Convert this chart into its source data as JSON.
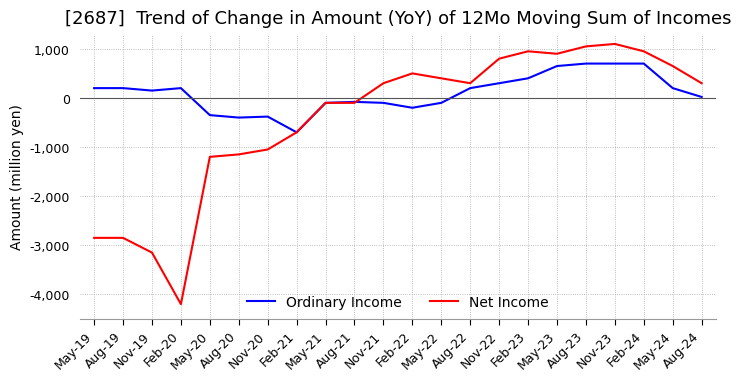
{
  "title": "[2687]  Trend of Change in Amount (YoY) of 12Mo Moving Sum of Incomes",
  "ylabel": "Amount (million yen)",
  "ylim": [
    -4500,
    1300
  ],
  "yticks": [
    1000,
    0,
    -1000,
    -2000,
    -3000,
    -4000
  ],
  "x_labels": [
    "May-19",
    "Aug-19",
    "Nov-19",
    "Feb-20",
    "May-20",
    "Aug-20",
    "Nov-20",
    "Feb-21",
    "May-21",
    "Aug-21",
    "Nov-21",
    "Feb-22",
    "May-22",
    "Aug-22",
    "Nov-22",
    "Feb-23",
    "May-23",
    "Aug-23",
    "Nov-23",
    "Feb-24",
    "May-24",
    "Aug-24"
  ],
  "ordinary_income": [
    200,
    200,
    150,
    200,
    -350,
    -400,
    -380,
    -700,
    -100,
    -80,
    -100,
    -200,
    -100,
    200,
    300,
    400,
    650,
    700,
    700,
    700,
    200,
    20
  ],
  "net_income": [
    -2850,
    -2850,
    -3150,
    -4200,
    -1200,
    -1150,
    -1050,
    -700,
    -100,
    -100,
    300,
    500,
    400,
    300,
    800,
    950,
    900,
    1050,
    1100,
    950,
    650,
    300
  ],
  "ordinary_color": "#0000ff",
  "net_color": "#ff0000",
  "grid_color": "#aaaaaa",
  "background_color": "#ffffff",
  "title_fontsize": 13,
  "label_fontsize": 10,
  "tick_fontsize": 9
}
